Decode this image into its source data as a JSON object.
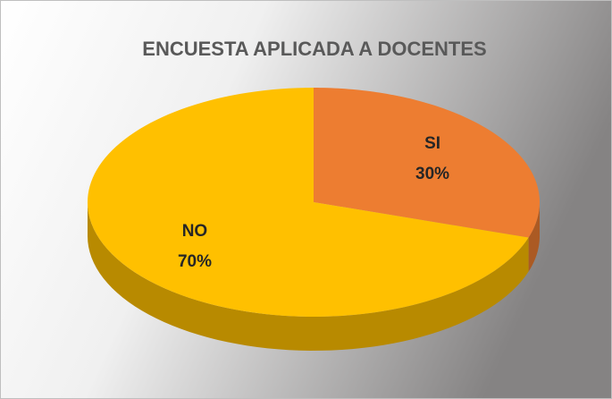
{
  "chart_data": {
    "type": "pie",
    "title": "ENCUESTA APLICADA A DOCENTES",
    "categories": [
      "SI",
      "NO"
    ],
    "values": [
      30,
      70
    ],
    "value_labels": [
      "30%",
      "70%"
    ],
    "colors": [
      "#ED7D31",
      "#FFC000"
    ]
  }
}
